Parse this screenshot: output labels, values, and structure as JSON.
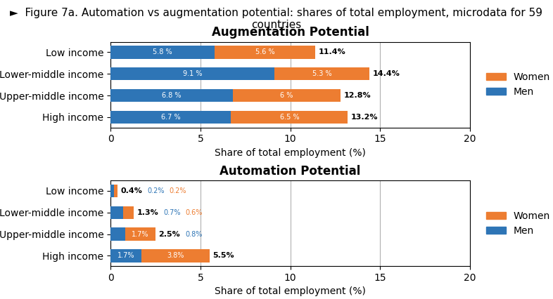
{
  "title": "►  Figure 7a. Automation vs augmentation potential: shares of total employment, microdata for 59 countries",
  "chart_data": [
    {
      "type": "bar",
      "orientation": "horizontal",
      "stacked": true,
      "title": "Augmentation Potential",
      "xlabel": "Share of total employment (%)",
      "categories": [
        "Low income",
        "Lower-middle income",
        "Upper-middle income",
        "High income"
      ],
      "series": [
        {
          "name": "Men",
          "color": "#2e75b6",
          "values": [
            5.8,
            9.1,
            6.8,
            6.7
          ],
          "value_labels": [
            "5.8 %",
            "9.1 %",
            "6.8 %",
            "6.7 %"
          ]
        },
        {
          "name": "Women",
          "color": "#ed7d31",
          "values": [
            5.6,
            5.3,
            6.0,
            6.5
          ],
          "value_labels": [
            "5.6 %",
            "5.3 %",
            "6 %",
            "6.5 %"
          ]
        }
      ],
      "totals": [
        11.4,
        14.4,
        12.8,
        13.2
      ],
      "total_labels": [
        "11.4%",
        "14.4%",
        "12.8%",
        "13.2%"
      ],
      "xlim": [
        0,
        20
      ],
      "xticks": [
        0,
        5,
        10,
        15,
        20
      ],
      "data_labels": true,
      "grid": true,
      "legend": "center left"
    },
    {
      "type": "bar",
      "orientation": "horizontal",
      "stacked": true,
      "title": "Automation Potential",
      "xlabel": "Share of total employment (%)",
      "categories": [
        "Low income",
        "Lower-middle income",
        "Upper-middle income",
        "High income"
      ],
      "series": [
        {
          "name": "Men",
          "color": "#2e75b6",
          "values": [
            0.2,
            0.7,
            0.8,
            1.7
          ],
          "value_labels": [
            "0.2%",
            "0.7%",
            "0.8%",
            "1.7%"
          ]
        },
        {
          "name": "Women",
          "color": "#ed7d31",
          "values": [
            0.2,
            0.6,
            1.7,
            3.8
          ],
          "value_labels": [
            "0.2%",
            "0.6%",
            "1.7%",
            "3.8%"
          ]
        }
      ],
      "totals": [
        0.4,
        1.3,
        2.5,
        5.5
      ],
      "total_labels": [
        "0.4%",
        "1.3%",
        "2.5%",
        "5.5%"
      ],
      "xlim": [
        0,
        20
      ],
      "xticks": [
        0,
        5,
        10,
        15,
        20
      ],
      "data_labels": true,
      "grid": true,
      "legend": "center left"
    }
  ]
}
